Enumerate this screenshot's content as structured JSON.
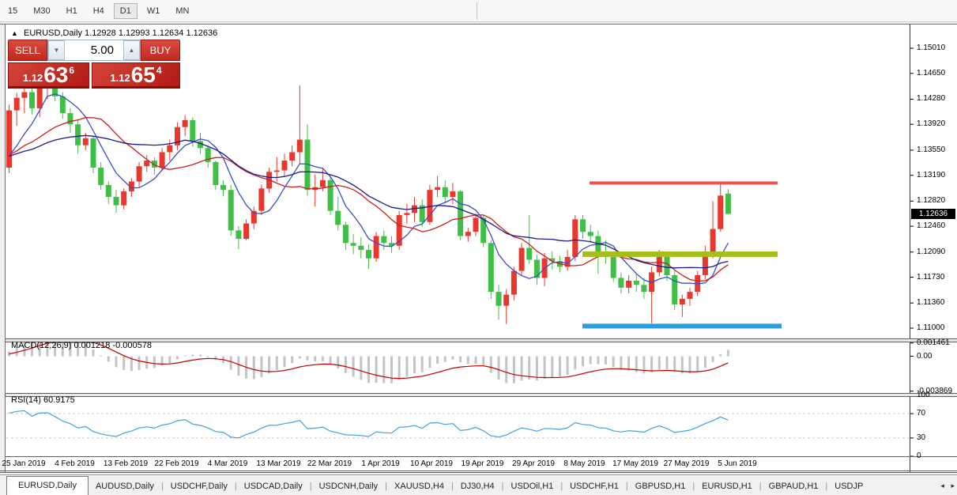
{
  "toolbar": {
    "timeframes": [
      "15",
      "M30",
      "H1",
      "H4",
      "D1",
      "W1",
      "MN"
    ],
    "active": "D1"
  },
  "chart_header": {
    "collapse_icon": "▲",
    "symbol_label": "EURUSD,Daily",
    "ohlc_text": "1.12928 1.12993 1.12634 1.12636"
  },
  "trade_panel": {
    "sell_label": "SELL",
    "buy_label": "BUY",
    "volume": "5.00",
    "down_arrow_icon": "▼",
    "up_arrow_icon": "▲",
    "sell_price": {
      "prefix": "1.12",
      "big": "63",
      "sup": "6"
    },
    "buy_price": {
      "prefix": "1.12",
      "big": "65",
      "sup": "4"
    }
  },
  "price_axis": {
    "labels": [
      "1.15010",
      "1.14650",
      "1.14280",
      "1.13920",
      "1.13550",
      "1.13190",
      "1.12820",
      "1.12460",
      "1.12090",
      "1.11730",
      "1.11360",
      "1.11000"
    ],
    "current": "1.12636"
  },
  "date_axis": [
    "25 Jan 2019",
    "4 Feb 2019",
    "13 Feb 2019",
    "22 Feb 2019",
    "4 Mar 2019",
    "13 Mar 2019",
    "22 Mar 2019",
    "1 Apr 2019",
    "10 Apr 2019",
    "19 Apr 2019",
    "29 Apr 2019",
    "8 May 2019",
    "17 May 2019",
    "27 May 2019",
    "5 Jun 2019"
  ],
  "indicators": {
    "macd": {
      "label": "MACD(12,26,9) 0.001218 -0.000578",
      "axis": [
        "0.001461",
        "0.00",
        "-0.003869"
      ]
    },
    "rsi": {
      "label": "RSI(14) 60.9175",
      "axis": [
        "100",
        "70",
        "30",
        "0"
      ],
      "levels": [
        70,
        30
      ]
    }
  },
  "tabs": {
    "items": [
      "EURUSD,Daily",
      "AUDUSD,Daily",
      "USDCHF,Daily",
      "USDCAD,Daily",
      "USDCNH,Daily",
      "XAUUSD,H4",
      "DJ30,H4",
      "USDOil,H1",
      "USDCHF,H1",
      "GBPUSD,H1",
      "EURUSD,H1",
      "GBPAUD,H1",
      "USDJP"
    ],
    "active_index": 0,
    "scroll_left_icon": "◂",
    "scroll_right_icon": "▸"
  },
  "chart_data": {
    "type": "candlestick",
    "symbol": "EURUSD",
    "timeframe": "Daily",
    "colors": {
      "up": "#e8382e",
      "down": "#3fbf45",
      "macd_bar": "#c4c4c4",
      "macd_signal": "#c00000",
      "rsi_line": "#42a0e0",
      "rsi_dash": "#c8c8c8"
    },
    "candles": [
      [
        1.133,
        1.142,
        1.1322,
        1.1412
      ],
      [
        1.1412,
        1.1437,
        1.139,
        1.143
      ],
      [
        1.143,
        1.1448,
        1.1408,
        1.1438
      ],
      [
        1.1438,
        1.145,
        1.1406,
        1.1415
      ],
      [
        1.1415,
        1.145,
        1.1402,
        1.1448
      ],
      [
        1.1448,
        1.1452,
        1.1428,
        1.145
      ],
      [
        1.145,
        1.1452,
        1.1425,
        1.1432
      ],
      [
        1.1432,
        1.1438,
        1.14,
        1.1408
      ],
      [
        1.1408,
        1.1415,
        1.138,
        1.1392
      ],
      [
        1.1392,
        1.1398,
        1.135,
        1.1362
      ],
      [
        1.1362,
        1.138,
        1.1355,
        1.1372
      ],
      [
        1.1372,
        1.1375,
        1.1322,
        1.133
      ],
      [
        1.133,
        1.1338,
        1.1298,
        1.1305
      ],
      [
        1.1305,
        1.131,
        1.1278,
        1.1288
      ],
      [
        1.1288,
        1.1298,
        1.1265,
        1.1276
      ],
      [
        1.1276,
        1.13,
        1.127,
        1.1296
      ],
      [
        1.1296,
        1.1315,
        1.1288,
        1.131
      ],
      [
        1.131,
        1.1338,
        1.1302,
        1.1332
      ],
      [
        1.1332,
        1.1348,
        1.1324,
        1.134
      ],
      [
        1.134,
        1.1345,
        1.132,
        1.133
      ],
      [
        1.133,
        1.1358,
        1.1325,
        1.1352
      ],
      [
        1.1352,
        1.137,
        1.134,
        1.1362
      ],
      [
        1.1362,
        1.1395,
        1.1355,
        1.1388
      ],
      [
        1.1388,
        1.1405,
        1.1375,
        1.1398
      ],
      [
        1.1398,
        1.1402,
        1.136,
        1.1368
      ],
      [
        1.1368,
        1.138,
        1.135,
        1.1358
      ],
      [
        1.1358,
        1.1362,
        1.133,
        1.1338
      ],
      [
        1.1338,
        1.134,
        1.1298,
        1.1305
      ],
      [
        1.1305,
        1.1312,
        1.1289,
        1.1298
      ],
      [
        1.1298,
        1.1305,
        1.1232,
        1.124
      ],
      [
        1.124,
        1.1246,
        1.1213,
        1.1228
      ],
      [
        1.1228,
        1.1256,
        1.1226,
        1.125
      ],
      [
        1.125,
        1.1274,
        1.1242,
        1.1268
      ],
      [
        1.1268,
        1.1306,
        1.1262,
        1.13
      ],
      [
        1.13,
        1.133,
        1.1294,
        1.1324
      ],
      [
        1.1324,
        1.1345,
        1.131,
        1.1326
      ],
      [
        1.1326,
        1.135,
        1.1318,
        1.134
      ],
      [
        1.134,
        1.1362,
        1.1332,
        1.1352
      ],
      [
        1.1352,
        1.1448,
        1.1336,
        1.137
      ],
      [
        1.137,
        1.1392,
        1.129,
        1.1298
      ],
      [
        1.1298,
        1.132,
        1.1274,
        1.1302
      ],
      [
        1.1302,
        1.133,
        1.1296,
        1.1312
      ],
      [
        1.1312,
        1.1318,
        1.1262,
        1.1268
      ],
      [
        1.1268,
        1.1288,
        1.124,
        1.1248
      ],
      [
        1.1248,
        1.1252,
        1.1212,
        1.1222
      ],
      [
        1.1222,
        1.1235,
        1.1206,
        1.1218
      ],
      [
        1.1218,
        1.123,
        1.12,
        1.1212
      ],
      [
        1.1212,
        1.122,
        1.1185,
        1.12
      ],
      [
        1.12,
        1.1238,
        1.1195,
        1.1232
      ],
      [
        1.1232,
        1.124,
        1.1212,
        1.1222
      ],
      [
        1.1222,
        1.1232,
        1.1208,
        1.1218
      ],
      [
        1.1218,
        1.1268,
        1.1212,
        1.1262
      ],
      [
        1.1262,
        1.1278,
        1.125,
        1.1265
      ],
      [
        1.1265,
        1.1288,
        1.1252,
        1.1276
      ],
      [
        1.1276,
        1.1285,
        1.1245,
        1.1252
      ],
      [
        1.1252,
        1.1305,
        1.1248,
        1.1298
      ],
      [
        1.1298,
        1.1318,
        1.1288,
        1.1302
      ],
      [
        1.1302,
        1.1312,
        1.128,
        1.1288
      ],
      [
        1.1288,
        1.1308,
        1.1278,
        1.1296
      ],
      [
        1.1296,
        1.1298,
        1.1226,
        1.1232
      ],
      [
        1.1232,
        1.1244,
        1.1224,
        1.1238
      ],
      [
        1.1238,
        1.1264,
        1.1232,
        1.1258
      ],
      [
        1.1258,
        1.1262,
        1.1216,
        1.1222
      ],
      [
        1.1222,
        1.1226,
        1.1142,
        1.1152
      ],
      [
        1.1152,
        1.1162,
        1.1112,
        1.1132
      ],
      [
        1.1132,
        1.1156,
        1.1106,
        1.1148
      ],
      [
        1.1148,
        1.1188,
        1.114,
        1.1182
      ],
      [
        1.1182,
        1.1222,
        1.1176,
        1.1215
      ],
      [
        1.1215,
        1.1262,
        1.1192,
        1.1198
      ],
      [
        1.1198,
        1.1205,
        1.1162,
        1.1172
      ],
      [
        1.1172,
        1.1208,
        1.116,
        1.12
      ],
      [
        1.12,
        1.121,
        1.1184,
        1.1196
      ],
      [
        1.1196,
        1.1204,
        1.118,
        1.1188
      ],
      [
        1.1188,
        1.1212,
        1.1182,
        1.1202
      ],
      [
        1.1202,
        1.1262,
        1.1196,
        1.1256
      ],
      [
        1.1256,
        1.1262,
        1.1228,
        1.1238
      ],
      [
        1.1238,
        1.1248,
        1.1222,
        1.1232
      ],
      [
        1.1232,
        1.124,
        1.1178,
        1.1206
      ],
      [
        1.1206,
        1.1226,
        1.1192,
        1.1202
      ],
      [
        1.1202,
        1.1208,
        1.1166,
        1.1172
      ],
      [
        1.1172,
        1.118,
        1.115,
        1.1158
      ],
      [
        1.1158,
        1.1176,
        1.115,
        1.1168
      ],
      [
        1.1168,
        1.1178,
        1.1152,
        1.1162
      ],
      [
        1.1162,
        1.1172,
        1.1142,
        1.1152
      ],
      [
        1.1152,
        1.1188,
        1.1107,
        1.118
      ],
      [
        1.118,
        1.1212,
        1.1174,
        1.1202
      ],
      [
        1.1202,
        1.1206,
        1.1168,
        1.1176
      ],
      [
        1.1176,
        1.1182,
        1.1126,
        1.1134
      ],
      [
        1.1134,
        1.1148,
        1.1116,
        1.1142
      ],
      [
        1.1142,
        1.1158,
        1.1132,
        1.1152
      ],
      [
        1.1152,
        1.1182,
        1.1146,
        1.1176
      ],
      [
        1.1176,
        1.1218,
        1.117,
        1.1209
      ],
      [
        1.1209,
        1.1282,
        1.12,
        1.1242
      ],
      [
        1.1242,
        1.1307,
        1.1238,
        1.129
      ],
      [
        1.12928,
        1.12993,
        1.12634,
        1.12636
      ]
    ],
    "warmup_closes_for_indicators": [
      1.133,
      1.1342,
      1.1355,
      1.1348,
      1.1338,
      1.133,
      1.1342,
      1.1352,
      1.1344,
      1.1336,
      1.1345,
      1.1356,
      1.135,
      1.134,
      1.1348,
      1.1358,
      1.1352,
      1.1344,
      1.135,
      1.1342,
      1.1336,
      1.1328,
      1.1332,
      1.133
    ],
    "moving_averages": [
      {
        "window": 6,
        "color": "#3a4ecb"
      },
      {
        "window": 13,
        "color": "#cc1f1f"
      },
      {
        "window": 24,
        "color": "#1b1b8c"
      }
    ],
    "levels": [
      {
        "price": 1.1308,
        "color": "#f0534f",
        "x1": 746,
        "x2": 984,
        "thickness": 4
      },
      {
        "price": 1.1206,
        "color": "#a6bd1d",
        "x1": 737,
        "x2": 984,
        "thickness": 7
      },
      {
        "price": 1.1103,
        "color": "#2f9de2",
        "x1": 737,
        "x2": 989,
        "thickness": 6
      }
    ],
    "macd": {
      "fast": 12,
      "slow": 26,
      "signal": 9
    },
    "rsi_period": 14,
    "ylim": [
      1.11,
      1.1501
    ]
  }
}
